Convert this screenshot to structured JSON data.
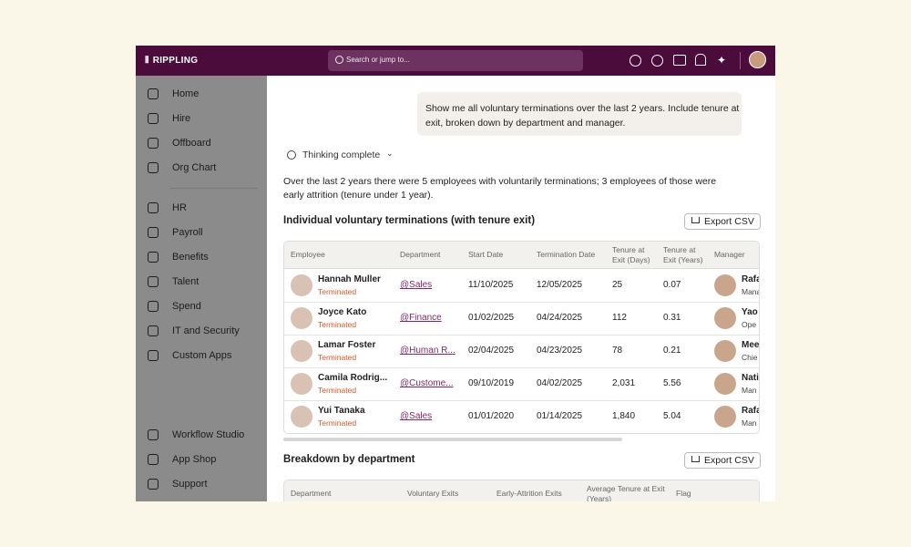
{
  "app": {
    "logo": "RIPPLING",
    "search": "Search or jump to..."
  },
  "sidebar": {
    "top": [
      "Home",
      "Hire",
      "Offboard",
      "Org Chart"
    ],
    "middle": [
      "HR",
      "Payroll",
      "Benefits",
      "Talent",
      "Spend",
      "IT and Security",
      "Custom Apps"
    ],
    "bottom": [
      "Workflow Studio",
      "App Shop",
      "Support"
    ]
  },
  "chat": {
    "prompt": "Show me all voluntary terminations over the last 2 years. Include tenure at exit, broken down by department and manager.",
    "thinking": "Thinking complete",
    "summary": "Over the last 2 years there were 5 employees with voluntarily terminations; 3 employees of those were early attrition (tenure under 1 year)."
  },
  "sections": [
    {
      "title": "Individual voluntary terminations (with tenure exit)",
      "action": "Export CSV",
      "table": {
        "headers": [
          "Employee",
          "Department",
          "Start Date",
          "Termination Date",
          "Tenure at Exit (Days)",
          "Tenure at Exit (Years)",
          "Manager"
        ],
        "rows": [
          {
            "name": "Hannah Muller",
            "status": "Terminated",
            "department": "@Sales",
            "start": "11/10/2025",
            "end": "12/05/2025",
            "days": "25",
            "years": "0.07",
            "manager": "Rafa",
            "manager_title": "Mana"
          },
          {
            "name": "Joyce Kato",
            "status": "Terminated",
            "department": "@Finance",
            "start": "01/02/2025",
            "end": "04/24/2025",
            "days": "112",
            "years": "0.31",
            "manager": "Yao",
            "manager_title": "Ope"
          },
          {
            "name": "Lamar Foster",
            "status": "Terminated",
            "department": "@Human R...",
            "start": "02/04/2025",
            "end": "04/23/2025",
            "days": "78",
            "years": "0.21",
            "manager": "Mee",
            "manager_title": "Chie"
          },
          {
            "name": "Camila Rodrig...",
            "status": "Terminated",
            "department": "@Custome...",
            "start": "09/10/2019",
            "end": "04/02/2025",
            "days": "2,031",
            "years": "5.56",
            "manager": "Nati",
            "manager_title": "Man"
          },
          {
            "name": "Yui Tanaka",
            "status": "Terminated",
            "department": "@Sales",
            "start": "01/01/2020",
            "end": "01/14/2025",
            "days": "1,840",
            "years": "5.04",
            "manager": "Rafa",
            "manager_title": "Man"
          }
        ]
      }
    },
    {
      "title": "Breakdown by department",
      "action": "Export CSV",
      "table": {
        "headers": [
          "Department",
          "Voluntary Exits",
          "Early-Attrition Exits",
          "Average Tenure at Exit (Years)",
          "Flag"
        ]
      }
    }
  ]
}
